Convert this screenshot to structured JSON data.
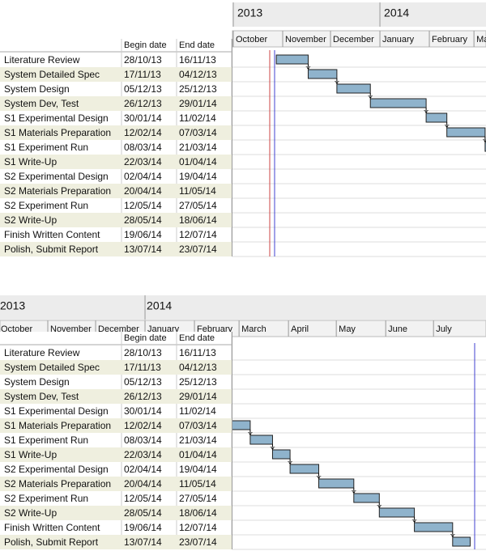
{
  "columns": {
    "begin": "Begin date",
    "end": "End date"
  },
  "tasks": [
    {
      "name": "Literature Review",
      "begin": "28/10/13",
      "end": "16/11/13"
    },
    {
      "name": "System Detailed Spec",
      "begin": "17/11/13",
      "end": "04/12/13"
    },
    {
      "name": "System Design",
      "begin": "05/12/13",
      "end": "25/12/13"
    },
    {
      "name": "System Dev, Test",
      "begin": "26/12/13",
      "end": "29/01/14"
    },
    {
      "name": "S1 Experimental Design",
      "begin": "30/01/14",
      "end": "11/02/14"
    },
    {
      "name": "S1 Materials Preparation",
      "begin": "12/02/14",
      "end": "07/03/14"
    },
    {
      "name": "S1 Experiment Run",
      "begin": "08/03/14",
      "end": "21/03/14"
    },
    {
      "name": "S1 Write-Up",
      "begin": "22/03/14",
      "end": "01/04/14"
    },
    {
      "name": "S2 Experimental Design",
      "begin": "02/04/14",
      "end": "19/04/14"
    },
    {
      "name": "S2 Materials Preparation",
      "begin": "20/04/14",
      "end": "11/05/14"
    },
    {
      "name": "S2 Experiment Run",
      "begin": "12/05/14",
      "end": "27/05/14"
    },
    {
      "name": "S2 Write-Up",
      "begin": "28/05/14",
      "end": "18/06/14"
    },
    {
      "name": "Finish Written Content",
      "begin": "19/06/14",
      "end": "12/07/14"
    },
    {
      "name": "Polish, Submit Report",
      "begin": "13/07/14",
      "end": "23/07/14"
    }
  ],
  "panels": [
    {
      "years": [
        "2013",
        "2014"
      ],
      "months": [
        "October",
        "November",
        "December",
        "January",
        "February",
        "March"
      ]
    },
    {
      "years": [
        "2013",
        "2014"
      ],
      "months": [
        "October",
        "November",
        "December",
        "January",
        "February",
        "March",
        "April",
        "May",
        "June",
        "July"
      ]
    }
  ]
}
